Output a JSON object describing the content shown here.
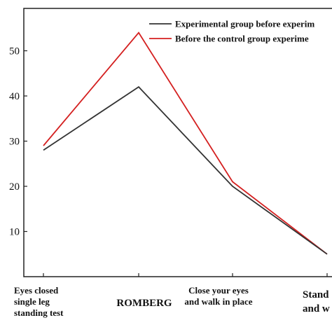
{
  "chart_data": {
    "type": "line",
    "categories": [
      [
        "Eyes closed",
        "single leg",
        "standing test"
      ],
      [
        "ROMBERG"
      ],
      [
        "Close your eyes",
        "and walk in place"
      ],
      [
        "Stand",
        "and w"
      ]
    ],
    "series": [
      {
        "name": "Experimental group before experim",
        "color": "#333333",
        "values": [
          28,
          42,
          20,
          5
        ]
      },
      {
        "name": "Before the control group experime",
        "color": "#d42020",
        "values": [
          29,
          54,
          21,
          5
        ]
      }
    ],
    "ylim": [
      0,
      60
    ],
    "yticks": [
      10,
      20,
      30,
      40,
      50
    ],
    "ytick_labels": [
      "10",
      "20",
      "30",
      "40",
      "50"
    ],
    "legend": "top-right",
    "grid": false
  }
}
